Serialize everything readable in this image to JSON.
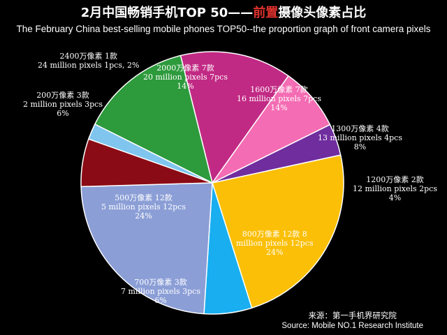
{
  "title": {
    "prefix": "2月中国畅销手机TOP 50——",
    "highlight": "前置",
    "suffix": "摄像头像素占比",
    "subtitle": "The February China best-selling mobile phones TOP50--the proportion graph of front camera pixels"
  },
  "source": {
    "cn": "来源：第一手机界研究院",
    "en": "Source: Mobile NO.1 Research Institute"
  },
  "chart_data": {
    "type": "pie",
    "title": "2月中国畅销手机TOP 50——前置摄像头像素占比",
    "subtitle": "The February China best-selling mobile phones TOP50--the proportion graph of front camera pixels",
    "total_units": 50,
    "slices": [
      {
        "name": "1600万像素",
        "count": 7,
        "percent": 14,
        "color": "#c12a84",
        "label_lines": [
          "1600万像素 7款",
          "16 million pixels 7pcs",
          "14%"
        ]
      },
      {
        "name": "1300万像素",
        "count": 4,
        "percent": 8,
        "color": "#f46cb3",
        "label_lines": [
          "1300万像素 4款",
          "13 million pixels 4pcs",
          "8%"
        ]
      },
      {
        "name": "1200万像素",
        "count": 2,
        "percent": 4,
        "color": "#6f2d9e",
        "label_lines": [
          "1200万像素 2款",
          "12 million pixels 2pcs",
          "4%"
        ]
      },
      {
        "name": "800万像素",
        "count": 12,
        "percent": 24,
        "color": "#fbbf07",
        "label_lines": [
          "800万像素 12款 8",
          "million pixels 12pcs",
          "24%"
        ]
      },
      {
        "name": "700万像素",
        "count": 3,
        "percent": 6,
        "color": "#18aef0",
        "label_lines": [
          "700万像素 3款",
          "7 million pixels 3pcs",
          "6%"
        ]
      },
      {
        "name": "500万像素",
        "count": 12,
        "percent": 24,
        "color": "#8b9ed6",
        "label_lines": [
          "500万像素 12款",
          "5 million pixels 12pcs",
          "24%"
        ]
      },
      {
        "name": "200万像素",
        "count": 3,
        "percent": 6,
        "color": "#8a0b15",
        "label_lines": [
          "200万像素 3款",
          "2 million pixels 3pcs",
          "6%"
        ]
      },
      {
        "name": "2400万像素",
        "count": 1,
        "percent": 2,
        "color": "#7fc5ee",
        "label_lines": [
          "2400万像素 1款",
          "24 million pixels 1pcs, 2%"
        ]
      },
      {
        "name": "2000万像素",
        "count": 7,
        "percent": 14,
        "color": "#2d9a3c",
        "label_lines": [
          "2000万像素 7款",
          "20 million pixels 7pcs",
          "14%"
        ]
      }
    ]
  }
}
